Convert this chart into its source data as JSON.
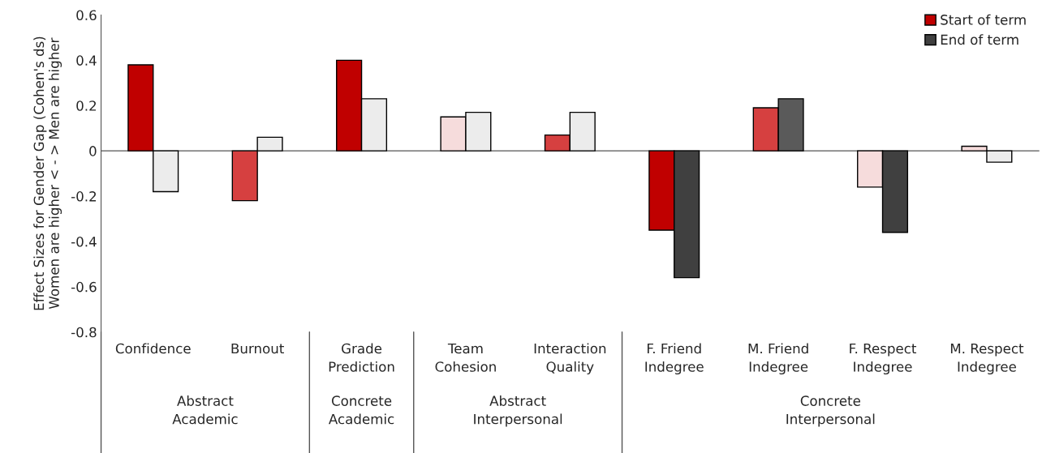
{
  "chart_data": {
    "type": "bar",
    "ylabel": "Effect Sizes for Gender Gap (Cohen's ds)\nWomen are higher < - > Men are higher",
    "categories": [
      "Confidence",
      "Burnout",
      "Grade\nPrediction",
      "Team\nCohesion",
      "Interaction\nQuality",
      "F. Friend\nIndegree",
      "M. Friend\nIndegree",
      "F. Respect\nIndegree",
      "M. Respect\nIndegree"
    ],
    "annotations": [
      "Abstract\nAcademic",
      "Concrete\nAcademic",
      "Abstract\nInterpersonal",
      "Concrete\nInterpersonal"
    ],
    "series": [
      {
        "name": "Start of term",
        "color": "#c00000",
        "values": [
          0.38,
          -0.22,
          0.4,
          0.15,
          0.07,
          -0.35,
          0.19,
          -0.16,
          0.02
        ],
        "colors": [
          "#c00000",
          "#d64040",
          "#c00000",
          "#f6dcdc",
          "#d64040",
          "#c00000",
          "#d64040",
          "#f6dcdc",
          "#f6dcdc"
        ]
      },
      {
        "name": "End of term",
        "color": "#404040",
        "values": [
          -0.18,
          0.06,
          0.23,
          0.17,
          0.17,
          -0.56,
          0.23,
          -0.36,
          -0.05
        ],
        "colors": [
          "#ececec",
          "#ececec",
          "#ececec",
          "#ececec",
          "#ececec",
          "#404040",
          "#5a5a5a",
          "#404040",
          "#ececec"
        ]
      }
    ],
    "ylim": [
      -0.8,
      0.6
    ],
    "yticks": [
      -0.8,
      -0.6,
      -0.4,
      -0.2,
      0,
      0.2,
      0.4,
      0.6
    ],
    "legend": "top right"
  }
}
